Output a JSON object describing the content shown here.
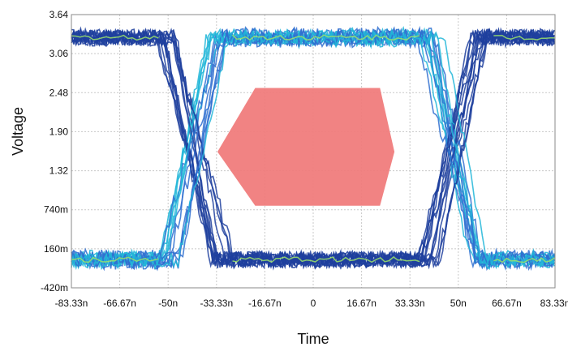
{
  "chart_data": {
    "type": "eye-diagram",
    "xlabel": "Time",
    "ylabel": "Voltage",
    "x_ticks": [
      {
        "value": -83.33,
        "label": "-83.33n"
      },
      {
        "value": -66.67,
        "label": "-66.67n"
      },
      {
        "value": -50,
        "label": "-50n"
      },
      {
        "value": -33.33,
        "label": "-33.33n"
      },
      {
        "value": -16.67,
        "label": "-16.67n"
      },
      {
        "value": 0,
        "label": "0"
      },
      {
        "value": 16.67,
        "label": "16.67n"
      },
      {
        "value": 33.33,
        "label": "33.33n"
      },
      {
        "value": 50,
        "label": "50n"
      },
      {
        "value": 66.67,
        "label": "66.67n"
      },
      {
        "value": 83.33,
        "label": "83.33n"
      }
    ],
    "y_ticks": [
      {
        "value": 3.64,
        "label": "3.64"
      },
      {
        "value": 3.06,
        "label": "3.06"
      },
      {
        "value": 2.48,
        "label": "2.48"
      },
      {
        "value": 1.9,
        "label": "1.90"
      },
      {
        "value": 1.32,
        "label": "1.32"
      },
      {
        "value": 0.74,
        "label": "740m"
      },
      {
        "value": 0.16,
        "label": "160m"
      },
      {
        "value": -0.42,
        "label": "-420m"
      }
    ],
    "xlim": [
      -83.33,
      83.33
    ],
    "ylim": [
      -0.42,
      3.64
    ],
    "grid": true,
    "logic_levels": {
      "high": 3.3,
      "low": 0.0
    },
    "transition_centers": [
      -41,
      49
    ],
    "eye_mask_polygon": [
      {
        "t": -33,
        "v": 1.6
      },
      {
        "t": -20,
        "v": 2.55
      },
      {
        "t": 23,
        "v": 2.55
      },
      {
        "t": 28,
        "v": 1.6
      },
      {
        "t": 23,
        "v": 0.8
      },
      {
        "t": -20,
        "v": 0.8
      }
    ],
    "colors": {
      "trace_dark": "#1f3f9e",
      "trace_mid": "#2f6fd0",
      "trace_light": "#21b6d8",
      "trace_highlight": "#9be36a",
      "mask": "#f07c7c",
      "grid": "#c8c8c8"
    }
  }
}
